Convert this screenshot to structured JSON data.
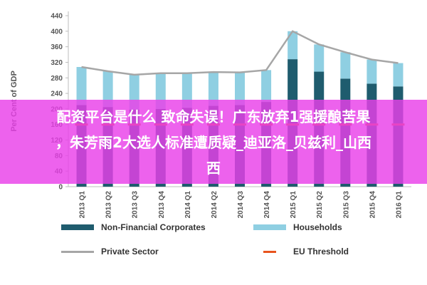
{
  "chart_data": {
    "type": "bar",
    "stacked": true,
    "categories": [
      "2013 Q1",
      "2013 Q2",
      "2013 Q3",
      "2013 Q4",
      "2014 Q1",
      "2014 Q2",
      "2014 Q3",
      "2014 Q4",
      "2015 Q1",
      "2015 Q2",
      "2015 Q3",
      "2015 Q4",
      "2016 Q1"
    ],
    "series": [
      {
        "name": "Non-Financial Corporates",
        "kind": "bar",
        "color": "#1f5c6e",
        "values": [
          210,
          205,
          198,
          200,
          203,
          208,
          210,
          218,
          328,
          296,
          278,
          265,
          258
        ]
      },
      {
        "name": "Households",
        "kind": "bar",
        "color": "#8fcfe2",
        "values": [
          98,
          92,
          90,
          92,
          89,
          87,
          84,
          82,
          72,
          70,
          68,
          62,
          60
        ]
      },
      {
        "name": "Private Sector",
        "kind": "line",
        "color": "#a6a6a6",
        "values": [
          308,
          297,
          288,
          292,
          292,
          295,
          294,
          300,
          400,
          366,
          346,
          327,
          318
        ]
      },
      {
        "name": "EU Threshold",
        "kind": "dash",
        "color": "#e8541e",
        "values": [
          160,
          160,
          160,
          160,
          160,
          160,
          160,
          160,
          160,
          160,
          160,
          160,
          160
        ]
      }
    ],
    "ylabel": "Per Cent of GDP",
    "ylim": [
      0,
      440
    ],
    "yticks": [
      0,
      40,
      80,
      120,
      160,
      200,
      240,
      280,
      320,
      360,
      400,
      440
    ],
    "ytick_labels": [
      "0",
      "40",
      "80",
      "120",
      "160",
      "200",
      "240",
      "280",
      "320",
      "360",
      "400",
      "440"
    ],
    "grid": false,
    "legend_position": "bottom"
  },
  "overlay": {
    "line1": "配资平台是什么 致命失误！广东放弃1强援酿苦果",
    "line2": "，朱芳雨2大选人标准遭质疑_迪亚洛_贝兹利_山西",
    "line3": "西"
  },
  "legend_labels": {
    "corporates": "Non-Financial Corporates",
    "households": "Households",
    "private": "Private Sector",
    "threshold": "EU Threshold"
  }
}
